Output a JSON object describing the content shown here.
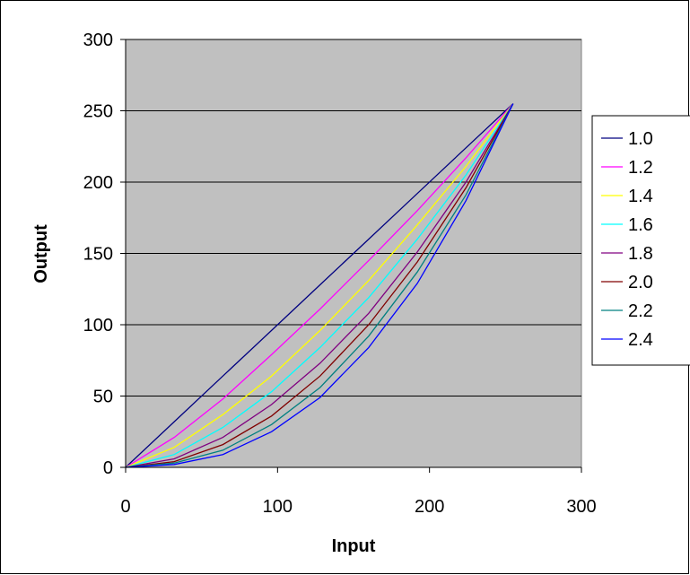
{
  "chart_data": {
    "type": "line",
    "xlabel": "Input",
    "ylabel": "Output",
    "xlim": [
      0,
      300
    ],
    "ylim": [
      0,
      300
    ],
    "x_ticks": [
      "0",
      "100",
      "200",
      "300"
    ],
    "y_ticks": [
      "0",
      "50",
      "100",
      "150",
      "200",
      "250",
      "300"
    ],
    "grid": "horizontal",
    "plot_background": "#C0C0C0",
    "legend_position": "right",
    "x": [
      0,
      32,
      64,
      96,
      128,
      160,
      192,
      224,
      255
    ],
    "series": [
      {
        "name": "1.0",
        "color": "#000080",
        "values": [
          0,
          32,
          64,
          96,
          128,
          160,
          192,
          224,
          255
        ]
      },
      {
        "name": "1.2",
        "color": "#FF00FF",
        "values": [
          0,
          21,
          48,
          79,
          111,
          145,
          180,
          217,
          255
        ]
      },
      {
        "name": "1.4",
        "color": "#FFFF00",
        "values": [
          0,
          14,
          37,
          64,
          96,
          131,
          170,
          211,
          255
        ]
      },
      {
        "name": "1.6",
        "color": "#00FFFF",
        "values": [
          0,
          9,
          28,
          53,
          84,
          119,
          160,
          205,
          255
        ]
      },
      {
        "name": "1.8",
        "color": "#800080",
        "values": [
          0,
          6,
          21,
          44,
          73,
          108,
          151,
          200,
          255
        ]
      },
      {
        "name": "2.0",
        "color": "#800000",
        "values": [
          0,
          4,
          16,
          36,
          64,
          100,
          144,
          196,
          255
        ]
      },
      {
        "name": "2.2",
        "color": "#008080",
        "values": [
          0,
          3,
          12,
          30,
          56,
          92,
          137,
          191,
          255
        ]
      },
      {
        "name": "2.4",
        "color": "#0000FF",
        "values": [
          0,
          2,
          9,
          25,
          49,
          84,
          129,
          187,
          255
        ]
      }
    ]
  }
}
